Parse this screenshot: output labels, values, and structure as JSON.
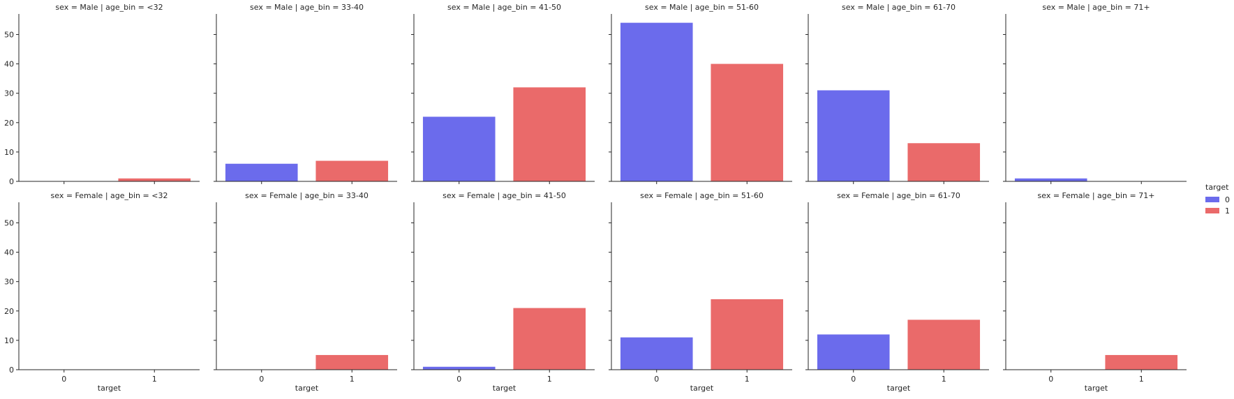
{
  "chart_data": {
    "type": "bar",
    "title": "",
    "xlabel": "target",
    "ylabel": "",
    "categories": [
      "0",
      "1"
    ],
    "ylim": [
      0,
      57
    ],
    "yticks": [
      0,
      10,
      20,
      30,
      40,
      50
    ],
    "grid": false,
    "legend": {
      "title": "target",
      "placement": "right",
      "entries": [
        {
          "label": "0",
          "color": "#6b6bec"
        },
        {
          "label": "1",
          "color": "#ea6a6a"
        }
      ]
    },
    "colors": {
      "0": "#6b6bec",
      "1": "#ea6a6a"
    },
    "panels": [
      {
        "title": "sex = Male | age_bin = <32",
        "values": [
          0,
          1
        ]
      },
      {
        "title": "sex = Male | age_bin = 33-40",
        "values": [
          6,
          7
        ]
      },
      {
        "title": "sex = Male | age_bin = 41-50",
        "values": [
          22,
          32
        ]
      },
      {
        "title": "sex = Male | age_bin = 51-60",
        "values": [
          54,
          40
        ]
      },
      {
        "title": "sex = Male | age_bin = 61-70",
        "values": [
          31,
          13
        ]
      },
      {
        "title": "sex = Male | age_bin = 71+",
        "values": [
          1,
          0
        ]
      },
      {
        "title": "sex = Female | age_bin = <32",
        "values": [
          0,
          0
        ]
      },
      {
        "title": "sex = Female | age_bin = 33-40",
        "values": [
          0,
          5
        ]
      },
      {
        "title": "sex = Female | age_bin = 41-50",
        "values": [
          1,
          21
        ]
      },
      {
        "title": "sex = Female | age_bin = 51-60",
        "values": [
          11,
          24
        ]
      },
      {
        "title": "sex = Female | age_bin = 61-70",
        "values": [
          12,
          17
        ]
      },
      {
        "title": "sex = Female | age_bin = 71+",
        "values": [
          0,
          5
        ]
      }
    ]
  }
}
